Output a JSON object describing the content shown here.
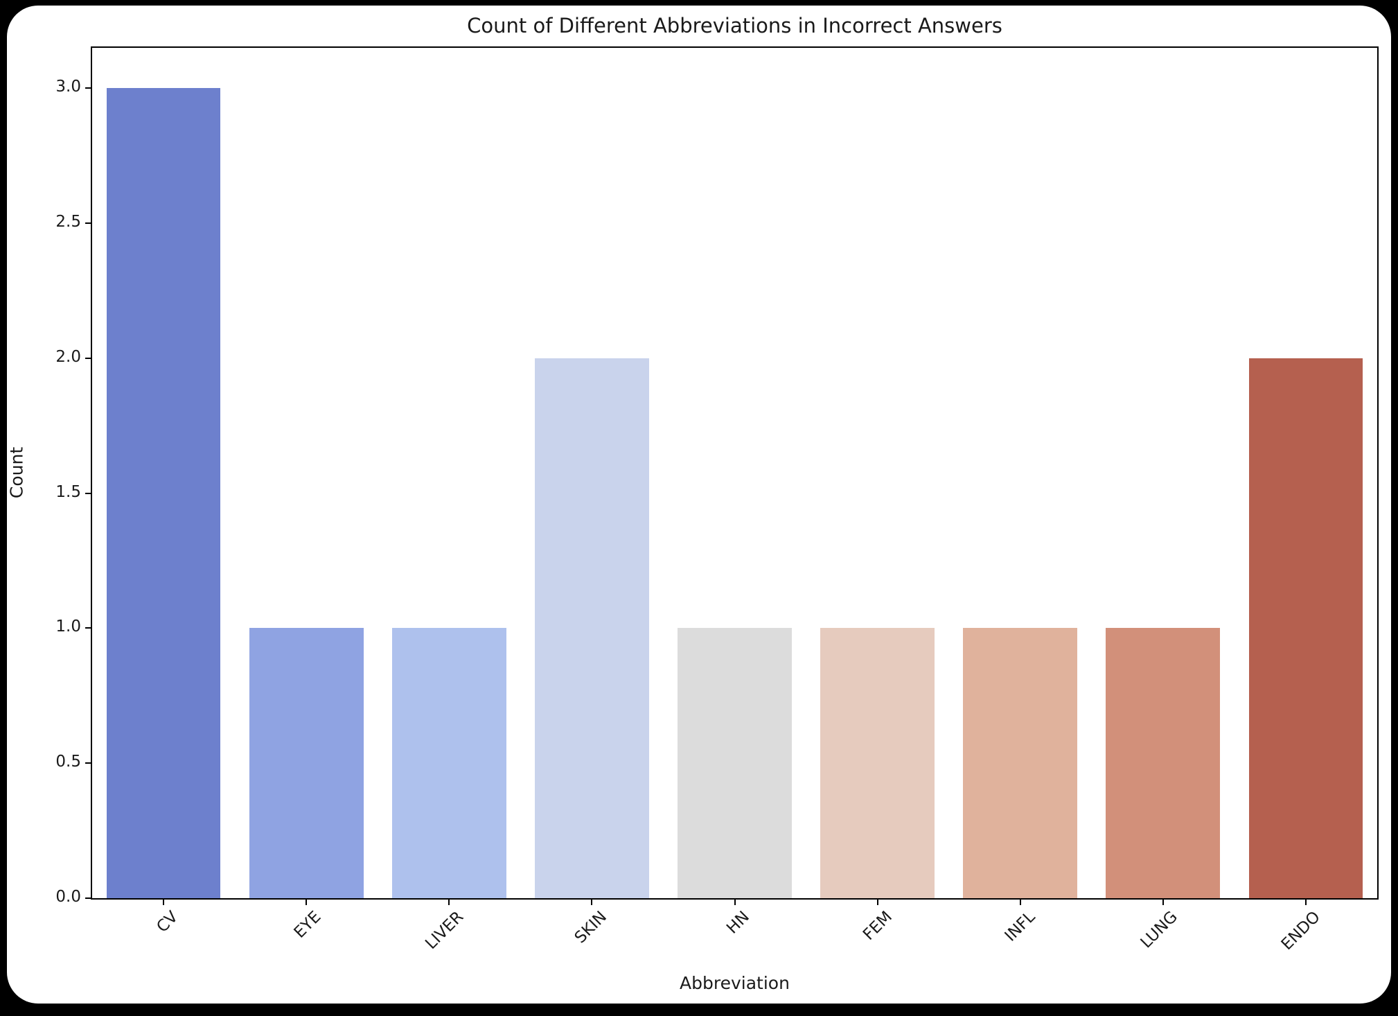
{
  "colors": {
    "page_background": "#000000",
    "figure_background": "#ffffff",
    "spine_color": "#000000",
    "text_color": "#1a1a1a"
  },
  "chart_data": {
    "type": "bar",
    "title": "Count of Different Abbreviations in Incorrect Answers",
    "xlabel": "Abbreviation",
    "ylabel": "Count",
    "categories": [
      "CV",
      "EYE",
      "LIVER",
      "SKIN",
      "HN",
      "FEM",
      "INFL",
      "LUNG",
      "ENDO"
    ],
    "values": [
      3,
      1,
      1,
      2,
      1,
      1,
      1,
      1,
      2
    ],
    "bar_colors": [
      "#6d80cd",
      "#8fa3e2",
      "#aec1ed",
      "#c9d3ec",
      "#dcdcdc",
      "#e6cbbe",
      "#e0b29c",
      "#d2907a",
      "#b5604f"
    ],
    "yticks": [
      0.0,
      0.5,
      1.0,
      1.5,
      2.0,
      2.5,
      3.0
    ],
    "ytick_labels": [
      "0.0",
      "0.5",
      "1.0",
      "1.5",
      "2.0",
      "2.5",
      "3.0"
    ],
    "ylim": [
      0,
      3.15
    ],
    "xtick_rotation_deg": 45,
    "bar_width_fraction": 0.8,
    "grid": false,
    "legend_position": "none"
  }
}
